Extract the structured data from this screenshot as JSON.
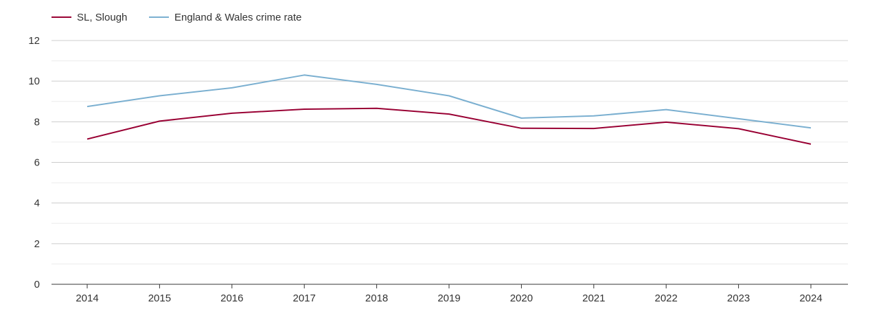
{
  "chart_data": {
    "type": "line",
    "title": "",
    "xlabel": "",
    "ylabel": "",
    "categories": [
      "2014",
      "2015",
      "2016",
      "2017",
      "2018",
      "2019",
      "2020",
      "2021",
      "2022",
      "2023",
      "2024"
    ],
    "ylim": [
      0,
      12
    ],
    "yticks": [
      "0",
      "2",
      "4",
      "6",
      "8",
      "10",
      "12"
    ],
    "grid": true,
    "legend_position": "top-left",
    "series": [
      {
        "name": "SL, Slough",
        "color": "#990033",
        "values": [
          7.15,
          8.03,
          8.42,
          8.62,
          8.66,
          8.38,
          7.68,
          7.67,
          7.98,
          7.66,
          6.9
        ]
      },
      {
        "name": "England & Wales crime rate",
        "color": "#7aafd0",
        "values": [
          8.75,
          9.28,
          9.67,
          10.3,
          9.84,
          9.28,
          8.18,
          8.29,
          8.6,
          8.15,
          7.7
        ]
      }
    ]
  }
}
